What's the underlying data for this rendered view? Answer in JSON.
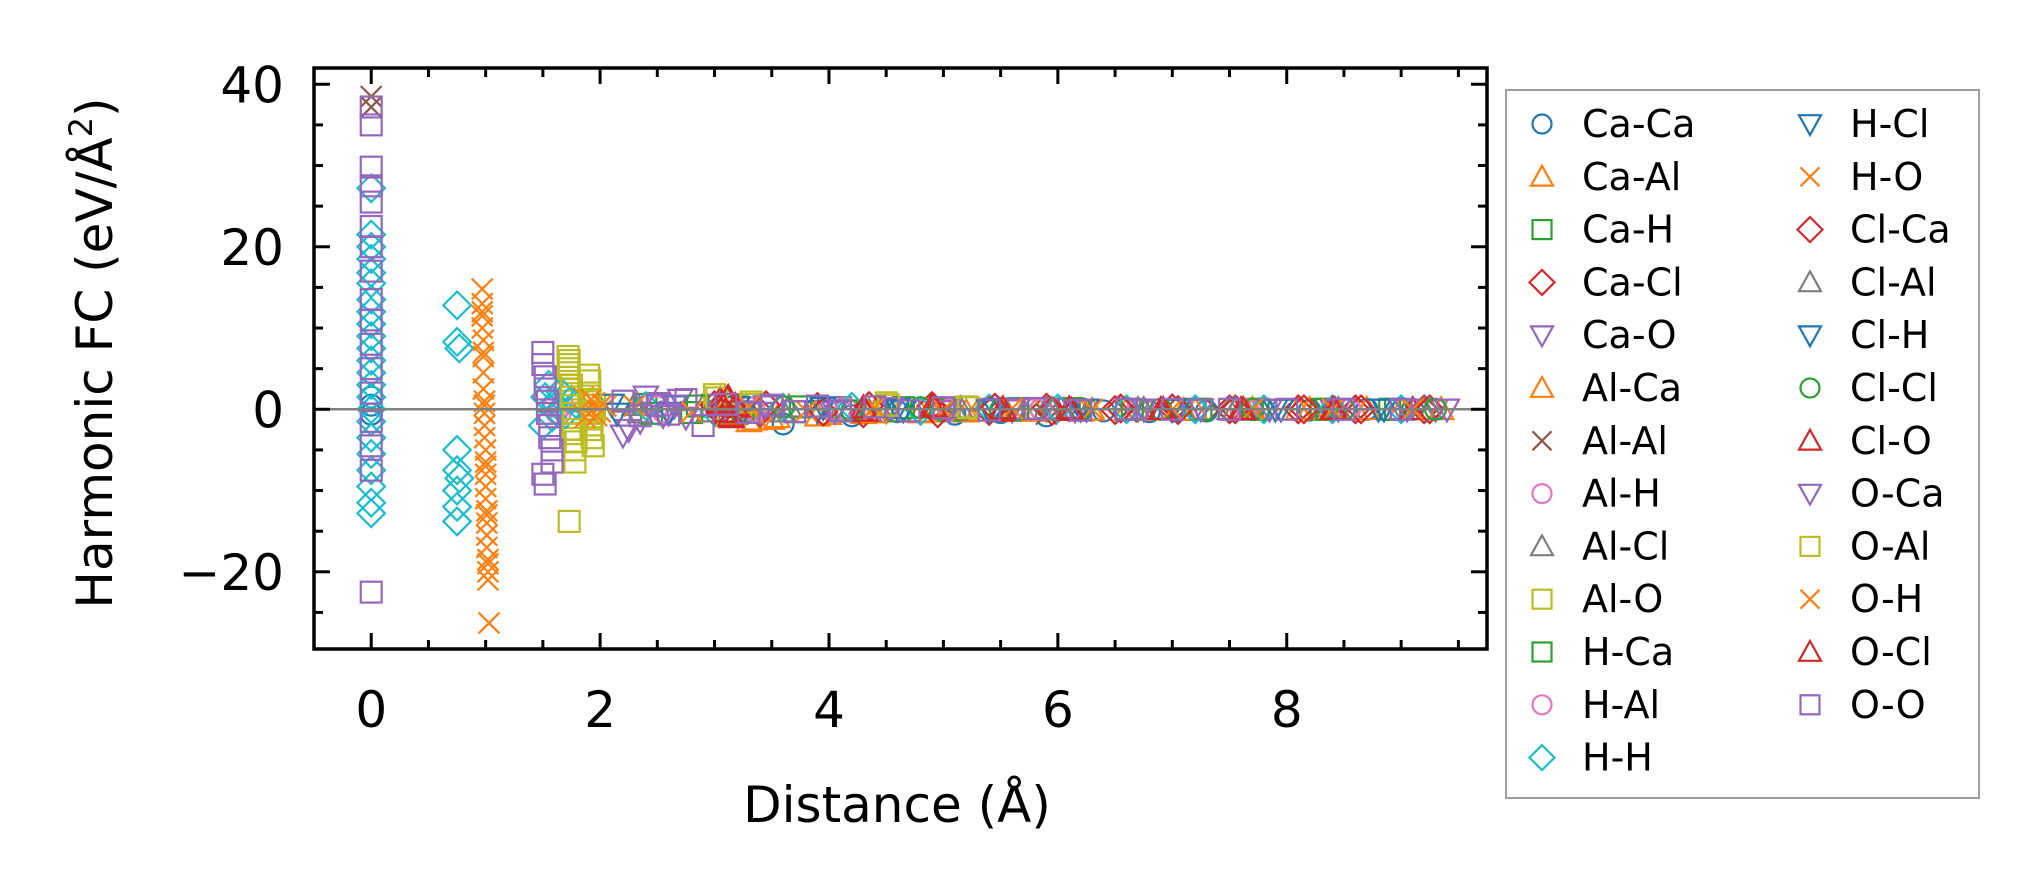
{
  "chart_data": {
    "type": "scatter",
    "title": "",
    "xlabel": "Distance (Å)",
    "ylabel_main": "Harmonic FC (eV/Å",
    "ylabel_sup": "2",
    "ylabel_close": ")",
    "xlim": [
      -0.5,
      9.75
    ],
    "ylim": [
      -29.5,
      42
    ],
    "xticks": [
      0,
      2,
      4,
      6,
      8
    ],
    "yticks": [
      -20,
      0,
      20,
      40
    ],
    "xtick_labels": [
      "0",
      "2",
      "4",
      "6",
      "8"
    ],
    "ytick_labels": [
      "−20",
      "0",
      "20",
      "40"
    ],
    "zero_line": true,
    "grid": false,
    "legend_position": "outside-right",
    "series": [
      {
        "name": "Ca-Ca",
        "marker": "circle",
        "color": "#1f77b4",
        "x": [
          0,
          0,
          0,
          3.25,
          3.6,
          4.2,
          4.6,
          5.1,
          5.5,
          5.9,
          6.4,
          6.8,
          7.3,
          7.8,
          8.2,
          8.7,
          9.1
        ],
        "y": [
          0.5,
          -0.6,
          1.5,
          -0.6,
          -1.8,
          -0.8,
          -0.3,
          -0.6,
          -0.4,
          -0.8,
          -0.2,
          -0.3,
          -0.2,
          -0.1,
          -0.1,
          0,
          0
        ]
      },
      {
        "name": "Ca-Al",
        "marker": "triangle-up",
        "color": "#ff7f0e",
        "x": [
          3.3,
          3.5,
          3.9,
          4.3,
          4.8,
          5.2,
          5.7,
          6.2,
          6.6,
          7.1,
          7.6,
          8.1,
          8.6,
          9.0
        ],
        "y": [
          -1.5,
          -1.2,
          -0.8,
          -0.5,
          -0.4,
          -0.3,
          -0.2,
          -0.2,
          -0.1,
          -0.1,
          -0.1,
          0,
          0,
          0
        ]
      },
      {
        "name": "Ca-H",
        "marker": "square",
        "color": "#2ca02c",
        "x": [
          2.4,
          2.8,
          3.2,
          3.7,
          4.1,
          4.6,
          5.0,
          5.6,
          6.1,
          6.6,
          7.2,
          7.7,
          8.3,
          8.9
        ],
        "y": [
          0.6,
          -0.4,
          0.3,
          -0.3,
          0.2,
          -0.2,
          0.1,
          -0.1,
          0.1,
          0,
          0,
          0,
          0,
          0
        ]
      },
      {
        "name": "Ca-Cl",
        "marker": "diamond",
        "color": "#d62728",
        "x": [
          3.0,
          3.4,
          3.9,
          4.3,
          4.9,
          5.4,
          5.9,
          6.5,
          7.0,
          7.5,
          8.1,
          8.6,
          9.2
        ],
        "y": [
          0.5,
          -0.4,
          0.3,
          -0.5,
          0.4,
          -0.2,
          0.2,
          -0.1,
          0.1,
          0,
          0,
          0,
          0
        ]
      },
      {
        "name": "Ca-O",
        "marker": "triangle-down",
        "color": "#9467bd",
        "x": [
          2.2,
          2.35,
          2.5,
          2.6,
          2.7,
          3.0,
          3.4,
          4.0,
          4.5,
          5.0,
          5.6,
          6.1,
          6.7,
          7.2,
          7.8,
          8.4,
          9.0,
          9.3
        ],
        "y": [
          -3.2,
          -1.5,
          0.8,
          -0.5,
          1.2,
          0.6,
          -0.4,
          0.3,
          -0.2,
          0.2,
          -0.1,
          0.1,
          0,
          0,
          0,
          0,
          0,
          0
        ]
      },
      {
        "name": "Al-Ca",
        "marker": "triangle-up",
        "color": "#ff7f0e",
        "x": [
          3.35,
          3.55,
          4.0,
          4.4,
          4.9,
          5.3,
          5.8,
          6.3,
          6.7,
          7.2,
          7.7,
          8.2,
          8.7,
          9.35
        ],
        "y": [
          -1.3,
          -1.0,
          -0.6,
          -0.4,
          -0.3,
          -0.2,
          -0.2,
          -0.1,
          -0.1,
          -0.1,
          0,
          0,
          0,
          0
        ]
      },
      {
        "name": "Al-Al",
        "marker": "x",
        "color": "#8c564b",
        "x": [
          0,
          0,
          5.9,
          6.6,
          7.4,
          8.3
        ],
        "y": [
          38.5,
          37.2,
          -0.6,
          -0.3,
          -0.2,
          0
        ]
      },
      {
        "name": "Al-H",
        "marker": "circle",
        "color": "#e377c2",
        "x": [
          1.6,
          1.65,
          2.5,
          3.3,
          4.1,
          5.0,
          5.8,
          6.7,
          7.6,
          8.5
        ],
        "y": [
          0.4,
          -0.5,
          0.3,
          0.2,
          -0.1,
          0.1,
          0,
          0,
          0,
          0
        ]
      },
      {
        "name": "Al-Cl",
        "marker": "triangle-up",
        "color": "#7f7f7f",
        "x": [
          2.3,
          2.9,
          3.6,
          4.3,
          5.1,
          5.9,
          6.7,
          7.5,
          8.4,
          9.2
        ],
        "y": [
          0.5,
          0.3,
          -0.3,
          0.2,
          -0.1,
          0.1,
          0,
          0,
          0,
          0
        ]
      },
      {
        "name": "Al-O",
        "marker": "square",
        "color": "#bcbd22",
        "x": [
          1.72,
          1.72,
          1.72,
          1.74,
          1.74,
          1.76,
          1.76,
          1.78,
          1.78,
          1.73,
          1.9,
          1.9,
          1.92,
          1.92,
          1.94,
          1.95,
          3.0,
          3.1,
          3.3,
          4.5,
          5.2
        ],
        "y": [
          6.5,
          5.5,
          4.5,
          2.5,
          1.0,
          -1.0,
          -3.0,
          -5.0,
          -6.5,
          -13.8,
          4.2,
          2.0,
          -0.5,
          -2.5,
          -4.5,
          0.5,
          1.8,
          -0.8,
          0.6,
          0.8,
          0.3
        ]
      },
      {
        "name": "H-Ca",
        "marker": "square",
        "color": "#2ca02c",
        "x": [
          2.45,
          2.85,
          3.25,
          3.75,
          4.15,
          4.65,
          5.05,
          5.65,
          6.15,
          6.65,
          7.25,
          7.75,
          8.35,
          8.95
        ],
        "y": [
          -0.5,
          0.4,
          -0.3,
          0.3,
          -0.2,
          0.2,
          -0.1,
          0.1,
          0,
          0,
          0,
          0,
          0,
          0
        ]
      },
      {
        "name": "H-Al",
        "marker": "circle",
        "color": "#e377c2",
        "x": [
          1.62,
          1.67,
          2.55,
          3.35,
          4.15,
          5.05,
          5.85,
          6.75,
          7.65,
          8.55
        ],
        "y": [
          -0.4,
          0.5,
          -0.3,
          -0.2,
          0.1,
          -0.1,
          0,
          0,
          0,
          0
        ]
      },
      {
        "name": "H-H",
        "marker": "diamond",
        "color": "#17becf",
        "x": [
          0,
          0,
          0,
          0,
          0,
          0,
          0,
          0,
          0,
          0,
          0,
          0,
          0,
          0,
          0,
          0,
          0,
          0,
          0,
          0,
          0,
          0,
          0,
          0.75,
          0.75,
          0.77,
          0.75,
          0.75,
          0.77,
          0.75,
          0.75,
          0.75,
          1.5,
          1.52,
          1.55,
          1.58,
          1.6,
          1.65,
          1.7,
          1.75,
          1.8,
          2.4,
          3.0,
          3.6,
          4.2,
          4.8,
          5.4,
          6.0,
          6.6,
          7.2,
          7.8,
          8.4,
          9.0
        ],
        "y": [
          27.2,
          21.5,
          20.0,
          18.5,
          16.8,
          15.5,
          13.5,
          12.0,
          10.5,
          9.0,
          7.5,
          6.0,
          4.5,
          3.0,
          1.5,
          0,
          -1.5,
          -3.5,
          -5.5,
          -7.5,
          -9.5,
          -11.5,
          -12.8,
          12.8,
          8.3,
          7.5,
          -5.0,
          -7.5,
          -8.5,
          -12.0,
          -13.8,
          -10.0,
          -2.0,
          1.5,
          3.0,
          -1.0,
          0.8,
          2.2,
          -0.6,
          1.2,
          0.5,
          0.4,
          -0.3,
          0.2,
          0.3,
          -0.2,
          0.1,
          0.1,
          0,
          0,
          0,
          0,
          0
        ]
      },
      {
        "name": "H-Cl",
        "marker": "triangle-down",
        "color": "#1f77b4",
        "x": [
          2.1,
          2.6,
          3.2,
          3.9,
          4.6,
          5.4,
          6.2,
          7.0,
          7.9,
          8.8
        ],
        "y": [
          0.6,
          -0.4,
          0.3,
          -0.2,
          0.1,
          -0.1,
          0,
          0,
          0,
          0
        ]
      },
      {
        "name": "H-O",
        "marker": "x",
        "color": "#ff7f0e",
        "x": [
          0.97,
          0.97,
          0.97,
          0.97,
          0.98,
          0.98,
          0.98,
          0.98,
          0.99,
          0.99,
          0.99,
          0.99,
          1.0,
          1.0,
          1.0,
          1.0,
          1.0,
          1.01,
          1.01,
          1.01,
          1.01,
          1.02,
          1.02,
          1.02,
          1.03,
          1.85,
          1.9,
          1.95,
          2.0,
          2.05
        ],
        "y": [
          14.8,
          13.0,
          11.5,
          10.0,
          8.5,
          6.5,
          4.5,
          2.5,
          1.0,
          -0.5,
          -2.0,
          -3.5,
          -5.0,
          -6.5,
          -8.0,
          -9.5,
          -11.0,
          -12.5,
          -14.0,
          -15.5,
          -17.0,
          -18.5,
          -20.0,
          -21.0,
          -26.3,
          1.5,
          -0.5,
          0.8,
          -0.3,
          0.4
        ]
      },
      {
        "name": "Cl-Ca",
        "marker": "diamond",
        "color": "#d62728",
        "x": [
          3.05,
          3.45,
          3.95,
          4.35,
          4.95,
          5.45,
          5.95,
          6.55,
          7.05,
          7.55,
          8.15,
          8.65,
          9.25
        ],
        "y": [
          -0.4,
          0.5,
          -0.3,
          0.4,
          -0.5,
          0.2,
          -0.2,
          0.1,
          -0.1,
          0,
          0,
          0,
          0
        ]
      },
      {
        "name": "Cl-Al",
        "marker": "triangle-up",
        "color": "#7f7f7f",
        "x": [
          2.35,
          2.95,
          3.65,
          4.35,
          5.15,
          5.95,
          6.75,
          7.55,
          8.45,
          9.25
        ],
        "y": [
          -0.4,
          -0.3,
          0.3,
          -0.2,
          0.1,
          -0.1,
          0,
          0,
          0,
          0
        ]
      },
      {
        "name": "Cl-H",
        "marker": "triangle-down",
        "color": "#1f77b4",
        "x": [
          2.15,
          2.65,
          3.25,
          3.95,
          4.65,
          5.45,
          6.25,
          7.05,
          7.95,
          8.85
        ],
        "y": [
          -0.5,
          0.4,
          -0.3,
          0.2,
          -0.1,
          0.1,
          0,
          0,
          0,
          0
        ]
      },
      {
        "name": "Cl-Cl",
        "marker": "circle",
        "color": "#2ca02c",
        "x": [
          3.6,
          4.2,
          4.8,
          5.5,
          6.2,
          6.9,
          7.7,
          8.5,
          9.3
        ],
        "y": [
          0.3,
          -0.2,
          0.2,
          -0.1,
          0.1,
          0,
          0,
          0,
          0
        ]
      },
      {
        "name": "Cl-O",
        "marker": "triangle-up",
        "color": "#d62728",
        "x": [
          3.05,
          3.08,
          3.1,
          3.12,
          3.15,
          3.2,
          4.3,
          4.9,
          5.5,
          6.1,
          6.9,
          7.6,
          8.4,
          9.1
        ],
        "y": [
          1.2,
          0.4,
          -0.5,
          1.5,
          -1.0,
          0.3,
          0.2,
          0.4,
          -0.2,
          0.1,
          0,
          0,
          0,
          0
        ]
      },
      {
        "name": "O-Ca",
        "marker": "triangle-down",
        "color": "#9467bd",
        "x": [
          2.25,
          2.4,
          2.55,
          2.65,
          2.75,
          3.05,
          3.45,
          4.05,
          4.55,
          5.05,
          5.65,
          6.15,
          6.75,
          7.25,
          7.85,
          8.45,
          9.05,
          9.4
        ],
        "y": [
          -2.5,
          1.6,
          -0.8,
          0.5,
          -1.0,
          -0.5,
          0.4,
          -0.3,
          0.2,
          -0.2,
          0.1,
          -0.1,
          0,
          0,
          0,
          0,
          0,
          0
        ]
      },
      {
        "name": "O-Al",
        "marker": "square",
        "color": "#bcbd22",
        "x": [
          1.73,
          1.73,
          1.75,
          1.75,
          1.77,
          1.77,
          1.79,
          1.91,
          1.91,
          1.93,
          1.93,
          1.95,
          3.02,
          3.12,
          3.32,
          4.52,
          5.22
        ],
        "y": [
          6.0,
          5.0,
          3.0,
          1.5,
          -0.5,
          -2.5,
          -4.0,
          3.5,
          1.2,
          -1.2,
          -3.5,
          -0.2,
          1.4,
          -0.6,
          0.9,
          0.5,
          0.2
        ]
      },
      {
        "name": "O-H",
        "marker": "x",
        "color": "#ff7f0e",
        "x": [
          0.97,
          0.98,
          0.99,
          1.0,
          1.01,
          1.02,
          1.87,
          1.92,
          1.97,
          2.02,
          2.3,
          2.8,
          3.3,
          3.8,
          4.4,
          5.0,
          5.6,
          6.3,
          7.0,
          7.7,
          8.4,
          9.1
        ],
        "y": [
          12.0,
          7.0,
          0.5,
          -7.0,
          -13.0,
          -19.0,
          -1.0,
          1.2,
          -0.8,
          0.6,
          0.4,
          -0.3,
          0.3,
          -0.2,
          0.2,
          -0.1,
          0.1,
          0,
          0,
          0,
          0,
          0
        ]
      },
      {
        "name": "O-Cl",
        "marker": "triangle-up",
        "color": "#d62728",
        "x": [
          3.06,
          3.09,
          3.11,
          3.14,
          3.18,
          4.32,
          4.92,
          5.52,
          6.12,
          6.92,
          7.62,
          8.42
        ],
        "y": [
          0.8,
          -0.3,
          1.3,
          -0.8,
          0.5,
          -0.2,
          0.3,
          0.1,
          -0.1,
          0,
          0,
          0
        ]
      },
      {
        "name": "O-O",
        "marker": "square",
        "color": "#9467bd",
        "x": [
          0,
          0,
          0,
          0,
          0,
          0,
          0,
          0,
          0,
          0,
          0,
          0,
          0,
          0,
          0,
          0,
          0,
          1.5,
          1.5,
          1.52,
          1.52,
          1.54,
          1.54,
          1.56,
          1.56,
          1.58,
          1.58,
          1.5,
          1.52,
          2.2,
          2.35,
          2.5,
          2.6,
          2.75,
          2.9,
          3.1,
          3.3,
          3.5,
          3.7,
          3.9,
          4.1,
          4.4,
          4.7,
          5.0,
          5.4,
          5.8,
          6.2,
          6.6,
          7.0,
          7.5,
          8.0,
          8.5,
          9.0
        ],
        "y": [
          37.2,
          35.0,
          29.8,
          27.5,
          25.5,
          22.5,
          20.0,
          17.0,
          13.5,
          11.0,
          8.0,
          5.0,
          2.0,
          -1.5,
          -4.5,
          -7.5,
          -22.5,
          7.0,
          5.5,
          4.0,
          2.5,
          1.0,
          -0.5,
          -2.0,
          -3.5,
          -5.0,
          -6.5,
          -8.0,
          -9.2,
          1.0,
          -0.8,
          0.5,
          -0.6,
          1.2,
          -2.0,
          0.6,
          -0.4,
          0.5,
          -0.3,
          0.4,
          -0.2,
          0.3,
          -0.2,
          0.2,
          -0.1,
          0.1,
          -0.1,
          0,
          0,
          0,
          0,
          0,
          0
        ]
      }
    ]
  }
}
